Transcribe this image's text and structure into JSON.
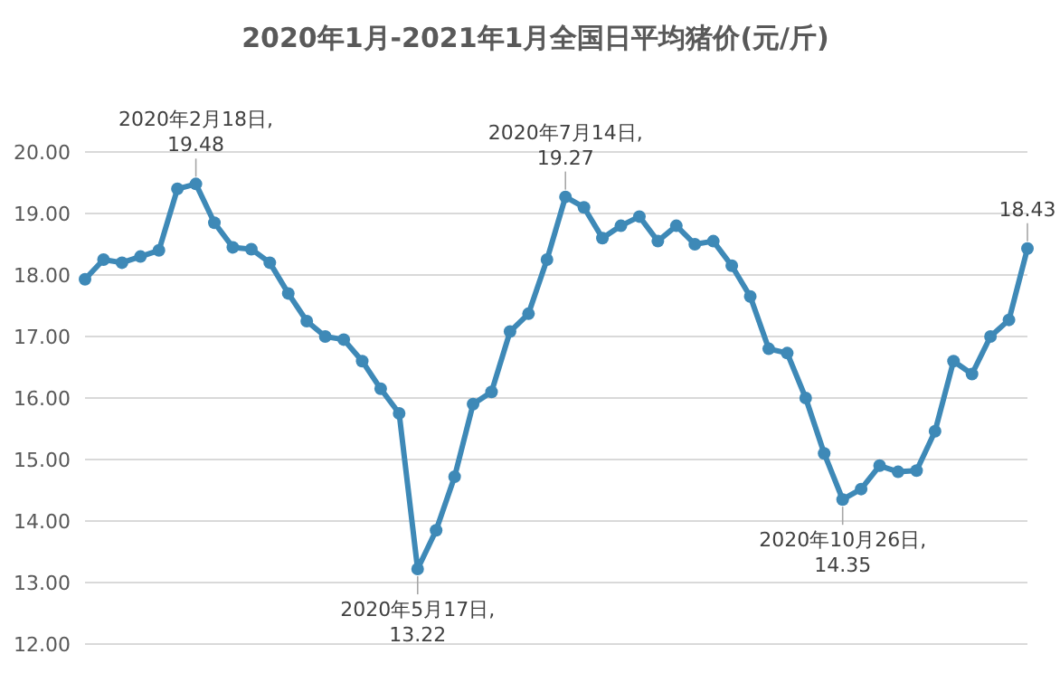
{
  "chart_data": {
    "type": "line",
    "title": "2020年1月-2021年1月全国日平均猪价(元/斤)",
    "categories": [
      null,
      null,
      null,
      null,
      null,
      null,
      null,
      null,
      null,
      null,
      null,
      null,
      null,
      null,
      null,
      null,
      null,
      null,
      null,
      null,
      null,
      null,
      null,
      null,
      null,
      null,
      null,
      null,
      null,
      null,
      null,
      null,
      null,
      null,
      null,
      null,
      null,
      null,
      null,
      null,
      null,
      null,
      null,
      null,
      null,
      null,
      null,
      null,
      null,
      null,
      null,
      null
    ],
    "series": [
      {
        "color": "#3e89b7",
        "values": [
          17.93,
          18.25,
          18.2,
          18.3,
          18.4,
          19.4,
          19.48,
          18.85,
          18.45,
          18.42,
          18.2,
          17.7,
          17.25,
          17.0,
          16.95,
          16.6,
          16.15,
          15.75,
          13.22,
          13.85,
          14.72,
          15.9,
          16.1,
          17.08,
          17.37,
          18.25,
          19.27,
          19.1,
          18.6,
          18.8,
          18.95,
          18.55,
          18.8,
          18.5,
          18.55,
          18.15,
          17.65,
          16.8,
          16.73,
          16.0,
          15.1,
          14.35,
          14.52,
          14.9,
          14.8,
          14.82,
          15.46,
          16.6,
          16.39,
          17.0,
          17.27,
          18.43
        ]
      }
    ],
    "ylim": [
      12,
      20
    ],
    "yticks": [
      {
        "value": 12,
        "label": "12.00"
      },
      {
        "value": 13,
        "label": "13.00"
      },
      {
        "value": 14,
        "label": "14.00"
      },
      {
        "value": 15,
        "label": "15.00"
      },
      {
        "value": 16,
        "label": "16.00"
      },
      {
        "value": 17,
        "label": "17.00"
      },
      {
        "value": 18,
        "label": "18.00"
      },
      {
        "value": 19,
        "label": "19.00"
      },
      {
        "value": 20,
        "label": "20.00"
      }
    ],
    "tick_labels": "y",
    "grid": "y",
    "marker": "circle",
    "legend": false,
    "annotations": [
      {
        "text": "2020年2月18日,\n19.48",
        "y": 19.48
      },
      {
        "text": "2020年5月17日,\n13.22",
        "y": 13.22
      },
      {
        "text": "2020年7月14日,\n19.27",
        "y": 19.27
      },
      {
        "text": "2020年10月26日,\n14.35",
        "y": 14.35
      },
      {
        "text": "18.43",
        "y": 18.43
      }
    ]
  }
}
